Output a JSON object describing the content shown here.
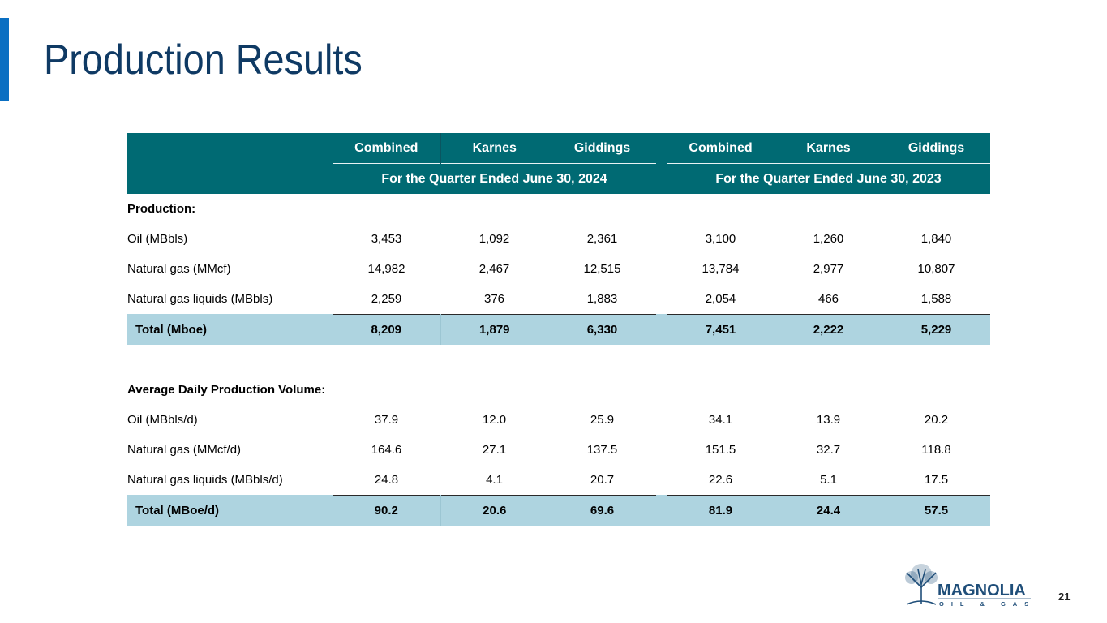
{
  "title": "Production Results",
  "table": {
    "column_headers": [
      "Combined",
      "Karnes",
      "Giddings",
      "Combined",
      "Karnes",
      "Giddings"
    ],
    "period_2024": "For the Quarter Ended June 30, 2024",
    "period_2023": "For the Quarter Ended June 30, 2023",
    "production_section": "Production:",
    "production_rows": [
      {
        "label": "Oil (MBbls)",
        "values": [
          "3,453",
          "1,092",
          "2,361",
          "3,100",
          "1,260",
          "1,840"
        ]
      },
      {
        "label": "Natural gas (MMcf)",
        "values": [
          "14,982",
          "2,467",
          "12,515",
          "13,784",
          "2,977",
          "10,807"
        ]
      },
      {
        "label": "Natural gas liquids (MBbls)",
        "values": [
          "2,259",
          "376",
          "1,883",
          "2,054",
          "466",
          "1,588"
        ]
      }
    ],
    "production_total": {
      "label": "Total (Mboe)",
      "values": [
        "8,209",
        "1,879",
        "6,330",
        "7,451",
        "2,222",
        "5,229"
      ]
    },
    "daily_section": "Average Daily Production Volume:",
    "daily_rows": [
      {
        "label": "Oil (MBbls/d)",
        "values": [
          "37.9",
          "12.0",
          "25.9",
          "34.1",
          "13.9",
          "20.2"
        ]
      },
      {
        "label": "Natural gas (MMcf/d)",
        "values": [
          "164.6",
          "27.1",
          "137.5",
          "151.5",
          "32.7",
          "118.8"
        ]
      },
      {
        "label": "Natural gas liquids (MBbls/d)",
        "values": [
          "24.8",
          "4.1",
          "20.7",
          "22.6",
          "5.1",
          "17.5"
        ]
      }
    ],
    "daily_total": {
      "label": "Total (MBoe/d)",
      "values": [
        "90.2",
        "20.6",
        "69.6",
        "81.9",
        "24.4",
        "57.5"
      ]
    }
  },
  "logo": {
    "name": "MAGNOLIA",
    "sub": "OIL & GAS",
    "icon": "tree-icon",
    "color": "#1f4e79"
  },
  "page_number": "21",
  "colors": {
    "header": "#006a73",
    "total_row": "#aed4e0",
    "accent": "#0a6fc2",
    "title": "#0f3a64"
  }
}
